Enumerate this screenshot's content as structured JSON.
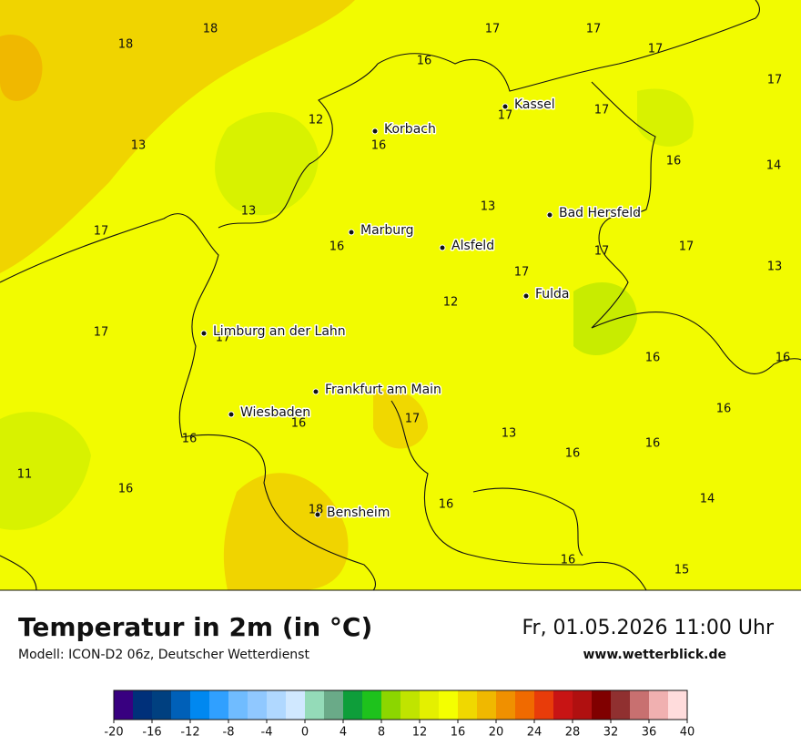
{
  "title": "Temperatur in 2m (in °C)",
  "model": "Modell: ICON-D2 06z, Deutscher Wetterdienst",
  "datetime": "Fr, 01.05.2026 11:00 Uhr",
  "source": "www.wetterblick.de",
  "cities": [
    "Kassel",
    "Korbach",
    "Bad Hersfeld",
    "Marburg",
    "Alsfeld",
    "Fulda",
    "Limburg an der Lahn",
    "Frankfurt am Main",
    "Wiesbaden",
    "Bensheim"
  ],
  "temperatures": [
    18,
    18,
    17,
    17,
    17,
    17,
    16,
    12,
    17,
    17,
    13,
    16,
    16,
    14,
    13,
    13,
    17,
    16,
    17,
    17,
    17,
    13,
    12,
    17,
    17,
    16,
    16,
    16,
    17,
    16,
    13,
    16,
    16,
    16,
    11,
    16,
    16,
    14,
    18,
    16,
    15
  ],
  "legend": {
    "colors": [
      "#380080",
      "#00307a",
      "#004080",
      "#0060b8",
      "#0088f0",
      "#30a0ff",
      "#70bcff",
      "#90c8ff",
      "#b0d8ff",
      "#d0e8ff",
      "#94dbb8",
      "#6aaa88",
      "#0e9e3a",
      "#1ec21c",
      "#8cd600",
      "#c0e400",
      "#e4f000",
      "#f4ff00",
      "#f0d800",
      "#f0b800",
      "#f09000",
      "#f06a00",
      "#e83c0a",
      "#c81414",
      "#b01010",
      "#800000",
      "#903030",
      "#c87070",
      "#f0b0b0",
      "#ffdcdc"
    ],
    "ticks": [
      -20,
      -16,
      -12,
      -8,
      -4,
      0,
      4,
      8,
      12,
      16,
      20,
      24,
      28,
      32,
      36,
      40
    ]
  }
}
